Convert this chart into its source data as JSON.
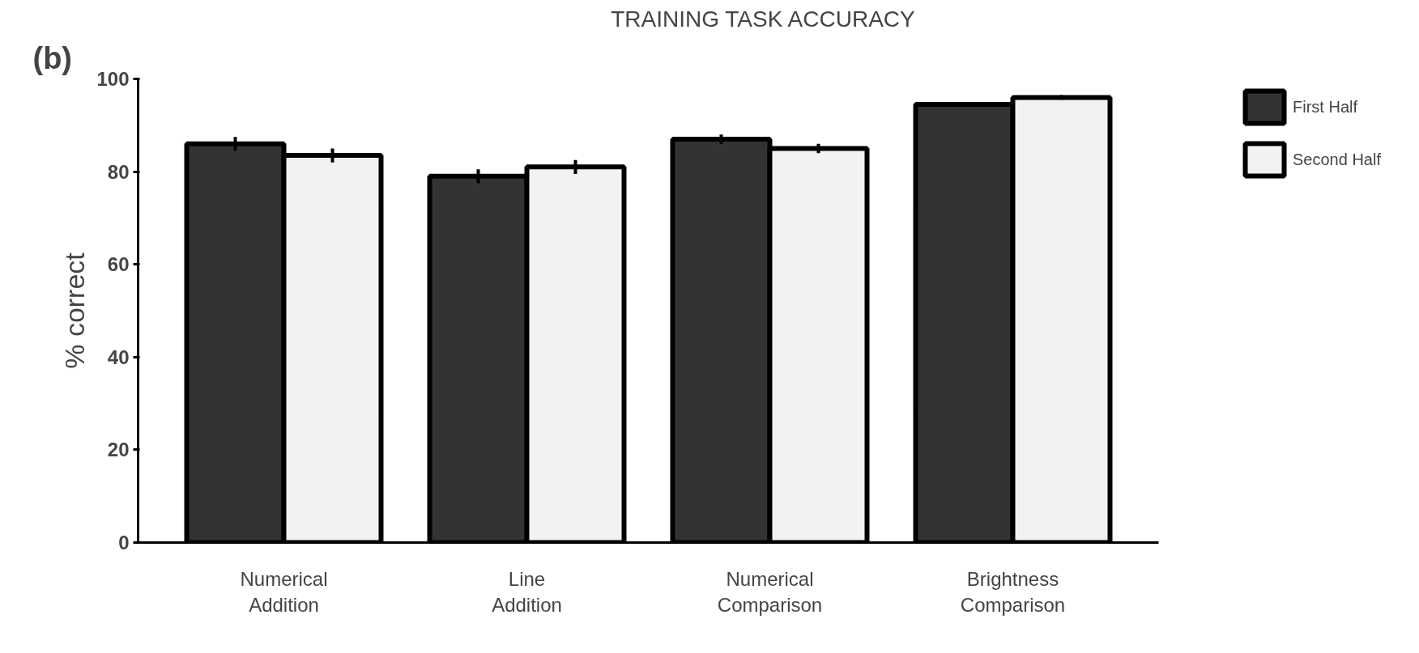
{
  "chart_data": {
    "type": "bar",
    "title": "TRAINING TASK ACCURACY",
    "ylabel": "% correct",
    "annotations": [
      "(b)"
    ],
    "categories": [
      "Numerical\nAddition",
      "Line\nAddition",
      "Numerical\nComparison",
      "Brightness\nComparison"
    ],
    "series": [
      {
        "name": "First Half",
        "color": "#333333",
        "values": [
          86,
          79,
          87,
          94.5
        ],
        "errors": [
          1.5,
          1.5,
          1,
          0.5
        ]
      },
      {
        "name": "Second Half",
        "color": "#f2f2f2",
        "values": [
          83.5,
          81,
          85,
          96
        ],
        "errors": [
          1.5,
          1.5,
          1,
          0.5
        ]
      }
    ],
    "ylim": [
      0,
      100
    ],
    "yticks": [
      0,
      20,
      40,
      60,
      80,
      100
    ],
    "grid": false,
    "legend": "top right"
  }
}
